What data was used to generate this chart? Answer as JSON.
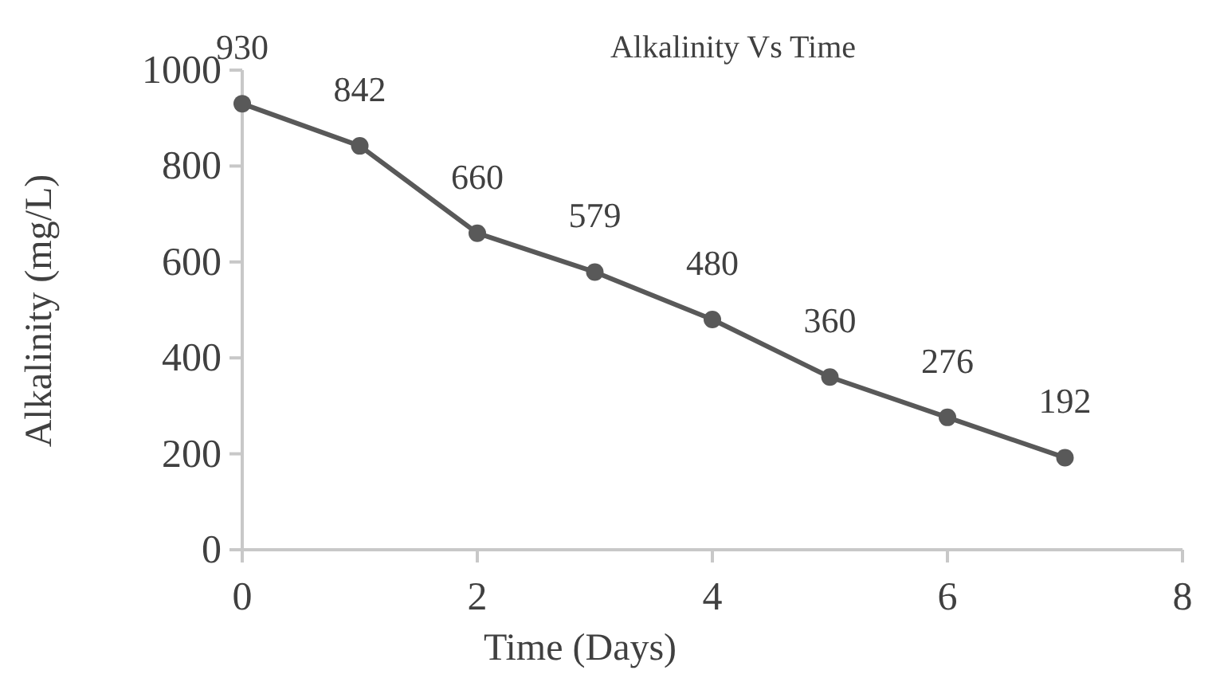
{
  "chart_data": {
    "type": "line",
    "title": "Alkalinity Vs Time",
    "xlabel": "Time (Days)",
    "ylabel": "Alkalinity (mg/L)",
    "x": [
      0,
      1,
      2,
      3,
      4,
      5,
      6,
      7
    ],
    "series": [
      {
        "color": "#595959",
        "values": [
          930,
          842,
          660,
          579,
          480,
          360,
          276,
          192
        ]
      }
    ],
    "xlim": [
      0,
      8
    ],
    "xticks": [
      0,
      2,
      4,
      6,
      8
    ],
    "ylim": [
      0,
      1000
    ],
    "yticks": [
      0,
      200,
      400,
      600,
      800,
      1000
    ],
    "data_labels": true,
    "marker": "circle",
    "line_style": "solid",
    "grid": false
  }
}
